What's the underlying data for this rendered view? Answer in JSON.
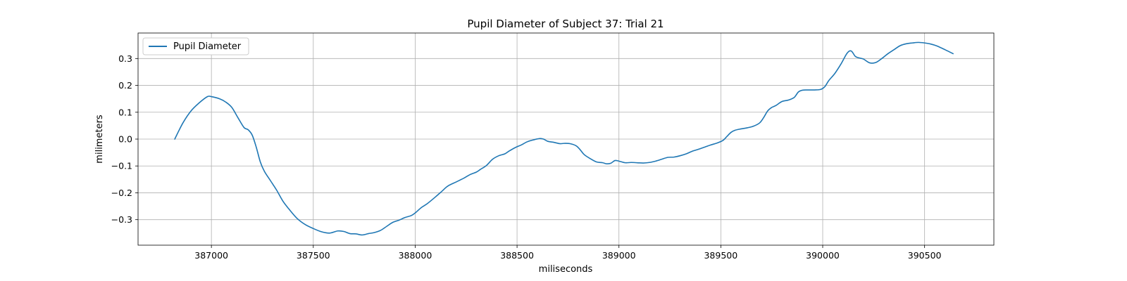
{
  "chart_data": {
    "type": "line",
    "title": "Pupil Diameter of Subject 37: Trial 21",
    "xlabel": "miliseconds",
    "ylabel": "milimeters",
    "xlim": [
      386640,
      390840
    ],
    "ylim": [
      -0.395,
      0.395
    ],
    "xticks": [
      387000,
      387500,
      388000,
      388500,
      389000,
      389500,
      390000,
      390500
    ],
    "xtick_labels": [
      "387000",
      "387500",
      "388000",
      "388500",
      "389000",
      "389500",
      "390000",
      "390500"
    ],
    "yticks": [
      -0.3,
      -0.2,
      -0.1,
      0.0,
      0.1,
      0.2,
      0.3
    ],
    "ytick_labels": [
      "−0.3",
      "−0.2",
      "−0.1",
      "0.0",
      "0.1",
      "0.2",
      "0.3"
    ],
    "grid": true,
    "legend": {
      "placement": "upper-left",
      "entries": [
        "Pupil Diameter"
      ]
    },
    "series": [
      {
        "name": "Pupil Diameter",
        "color": "#1f77b4",
        "x": [
          386820,
          386860,
          386900,
          386940,
          386980,
          387000,
          387040,
          387070,
          387100,
          387130,
          387160,
          387180,
          387200,
          387220,
          387240,
          387260,
          387290,
          387320,
          387350,
          387380,
          387420,
          387460,
          387500,
          387540,
          387580,
          387620,
          387650,
          387680,
          387710,
          387740,
          387770,
          387800,
          387830,
          387860,
          387890,
          387920,
          387950,
          387980,
          388000,
          388030,
          388060,
          388100,
          388130,
          388160,
          388200,
          388240,
          388270,
          388300,
          388320,
          388350,
          388380,
          388410,
          388440,
          388460,
          388490,
          388520,
          388550,
          388580,
          388610,
          388630,
          388650,
          388680,
          388710,
          388730,
          388760,
          388790,
          388810,
          388830,
          388860,
          388890,
          388920,
          388940,
          388960,
          388980,
          389000,
          389030,
          389060,
          389090,
          389120,
          389150,
          389180,
          389210,
          389240,
          389270,
          389300,
          389330,
          389360,
          389390,
          389420,
          389450,
          389480,
          389510,
          389530,
          389550,
          389570,
          389600,
          389630,
          389660,
          389690,
          389710,
          389730,
          389750,
          389770,
          389800,
          389830,
          389860,
          389880,
          389900,
          389930,
          389960,
          389990,
          390010,
          390030,
          390060,
          390090,
          390120,
          390140,
          390160,
          390180,
          390200,
          390230,
          390260,
          390290,
          390320,
          390350,
          390380,
          390410,
          390440,
          390470,
          390500,
          390530,
          390560,
          390600,
          390640
        ],
        "y": [
          0.0,
          0.06,
          0.105,
          0.135,
          0.158,
          0.158,
          0.15,
          0.138,
          0.118,
          0.08,
          0.043,
          0.035,
          0.015,
          -0.03,
          -0.085,
          -0.12,
          -0.155,
          -0.19,
          -0.23,
          -0.26,
          -0.295,
          -0.318,
          -0.333,
          -0.345,
          -0.35,
          -0.342,
          -0.344,
          -0.352,
          -0.353,
          -0.357,
          -0.352,
          -0.348,
          -0.34,
          -0.325,
          -0.31,
          -0.302,
          -0.292,
          -0.285,
          -0.275,
          -0.255,
          -0.24,
          -0.215,
          -0.195,
          -0.175,
          -0.16,
          -0.145,
          -0.132,
          -0.123,
          -0.113,
          -0.098,
          -0.075,
          -0.062,
          -0.055,
          -0.045,
          -0.032,
          -0.022,
          -0.01,
          -0.003,
          0.002,
          0.0,
          -0.008,
          -0.012,
          -0.017,
          -0.016,
          -0.017,
          -0.025,
          -0.04,
          -0.058,
          -0.073,
          -0.085,
          -0.088,
          -0.092,
          -0.09,
          -0.08,
          -0.082,
          -0.088,
          -0.087,
          -0.088,
          -0.089,
          -0.087,
          -0.082,
          -0.075,
          -0.068,
          -0.067,
          -0.062,
          -0.055,
          -0.045,
          -0.038,
          -0.03,
          -0.022,
          -0.015,
          -0.005,
          0.01,
          0.025,
          0.033,
          0.038,
          0.042,
          0.048,
          0.06,
          0.08,
          0.105,
          0.118,
          0.125,
          0.14,
          0.145,
          0.155,
          0.175,
          0.182,
          0.183,
          0.183,
          0.185,
          0.195,
          0.218,
          0.245,
          0.28,
          0.32,
          0.328,
          0.308,
          0.302,
          0.298,
          0.284,
          0.285,
          0.3,
          0.318,
          0.333,
          0.348,
          0.355,
          0.358,
          0.36,
          0.358,
          0.354,
          0.347,
          0.333,
          0.318
        ]
      }
    ]
  }
}
